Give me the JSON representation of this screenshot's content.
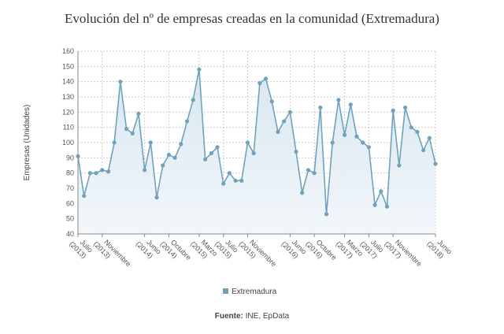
{
  "title": "Evolución del nº de empresas creadas en la comunidad (Extremadura)",
  "source": {
    "label": "Fuente:",
    "text": " INE, EpData"
  },
  "colors": {
    "line": "#6fa3bd",
    "point": "#6fa3bd",
    "fill_top": "#d4e4ef",
    "fill_bottom": "#f1f6fa",
    "grid": "#cccccc"
  },
  "chart_data": {
    "type": "area",
    "title": "Evolución del nº de empresas creadas en la comunidad (Extremadura)",
    "ylabel": "Empresas (Unidades)",
    "xlabel": "",
    "ylim": [
      40,
      160
    ],
    "yticks": [
      40,
      50,
      60,
      70,
      80,
      90,
      100,
      110,
      120,
      130,
      140,
      150,
      160
    ],
    "grid": true,
    "legend_position": "bottom",
    "x_ticks": [
      {
        "index": 0,
        "line1": "Julio",
        "line2": "(2013)"
      },
      {
        "index": 4,
        "line1": "Noviembre",
        "line2": "(2013)"
      },
      {
        "index": 11,
        "line1": "Junio",
        "line2": "(2014)"
      },
      {
        "index": 15,
        "line1": "Octubre",
        "line2": "(2014)"
      },
      {
        "index": 20,
        "line1": "Marzo",
        "line2": "(2015)"
      },
      {
        "index": 24,
        "line1": "Julio",
        "line2": "(2015)"
      },
      {
        "index": 28,
        "line1": "Noviembre",
        "line2": "(2015)"
      },
      {
        "index": 35,
        "line1": "Junio",
        "line2": "(2016)"
      },
      {
        "index": 39,
        "line1": "Octubre",
        "line2": "(2016)"
      },
      {
        "index": 44,
        "line1": "Marzo",
        "line2": "(2017)"
      },
      {
        "index": 48,
        "line1": "Julio",
        "line2": "(2017)"
      },
      {
        "index": 52,
        "line1": "Noviembre",
        "line2": "(2017)"
      },
      {
        "index": 59,
        "line1": "Junio",
        "line2": "(2018)"
      }
    ],
    "series": [
      {
        "name": "Extremadura",
        "values": [
          91,
          65,
          80,
          80,
          82,
          81,
          100,
          140,
          109,
          106,
          119,
          82,
          100,
          64,
          85,
          92,
          90,
          99,
          114,
          128,
          148,
          89,
          93,
          97,
          73,
          80,
          75,
          75,
          100,
          93,
          139,
          142,
          127,
          107,
          114,
          120,
          94,
          67,
          82,
          80,
          123,
          53,
          100,
          128,
          105,
          125,
          104,
          100,
          97,
          59,
          68,
          58,
          121,
          85,
          123,
          110,
          107,
          95,
          103,
          86
        ]
      }
    ]
  }
}
